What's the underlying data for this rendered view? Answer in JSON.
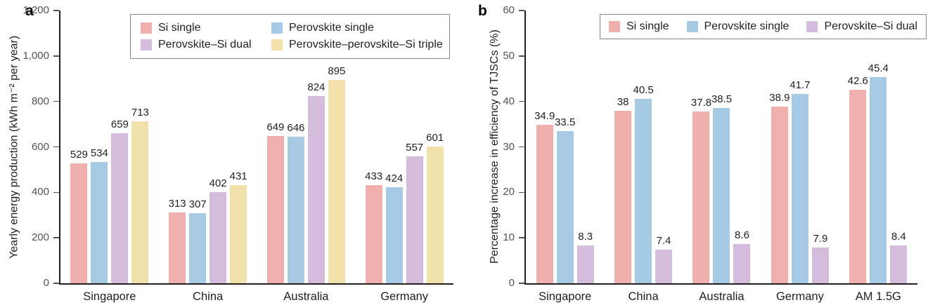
{
  "chart_data": [
    {
      "type": "bar",
      "panel_label": "a",
      "title": "",
      "ylabel": "Yearly energy production (kWh m⁻² per year)",
      "xlabel": "",
      "ylim": [
        0,
        1200
      ],
      "yticks": [
        "0",
        "200",
        "400",
        "600",
        "800",
        "1,000",
        "1,200"
      ],
      "grid": false,
      "legend_position": "top-inside-box",
      "legend_columns": 2,
      "value_labels": true,
      "categories": [
        "Singapore",
        "China",
        "Australia",
        "Germany"
      ],
      "series": [
        {
          "name": "Si single",
          "color": "#efb0ad",
          "values": [
            529,
            313,
            649,
            433
          ]
        },
        {
          "name": "Perovskite single",
          "color": "#a6c9e4",
          "values": [
            534,
            307,
            646,
            424
          ]
        },
        {
          "name": "Perovskite–Si dual",
          "color": "#d3bcdc",
          "values": [
            659,
            402,
            824,
            557
          ]
        },
        {
          "name": "Perovskite–perovskite–Si triple",
          "color": "#f2e1aa",
          "values": [
            713,
            431,
            895,
            601
          ]
        }
      ]
    },
    {
      "type": "bar",
      "panel_label": "b",
      "title": "",
      "ylabel": "Percentage increase in efficiency of TJSCs (%)",
      "xlabel": "",
      "ylim": [
        0,
        60
      ],
      "yticks": [
        "0",
        "10",
        "20",
        "30",
        "40",
        "50",
        "60"
      ],
      "grid": false,
      "legend_position": "top-inside-box",
      "legend_columns": 3,
      "value_labels": true,
      "categories": [
        "Singapore",
        "China",
        "Australia",
        "Germany",
        "AM 1.5G"
      ],
      "series": [
        {
          "name": "Si single",
          "color": "#efb0ad",
          "values": [
            34.9,
            38,
            37.8,
            38.9,
            42.6
          ]
        },
        {
          "name": "Perovskite single",
          "color": "#a6c9e4",
          "values": [
            33.5,
            40.5,
            38.5,
            41.7,
            45.4
          ]
        },
        {
          "name": "Perovskite–Si dual",
          "color": "#d3bcdc",
          "values": [
            8.3,
            7.4,
            8.6,
            7.9,
            8.4
          ]
        }
      ]
    }
  ],
  "colors": {
    "axis": "#231f20",
    "tick": "#545454",
    "legend_border": "#888888",
    "background": "#ffffff"
  }
}
